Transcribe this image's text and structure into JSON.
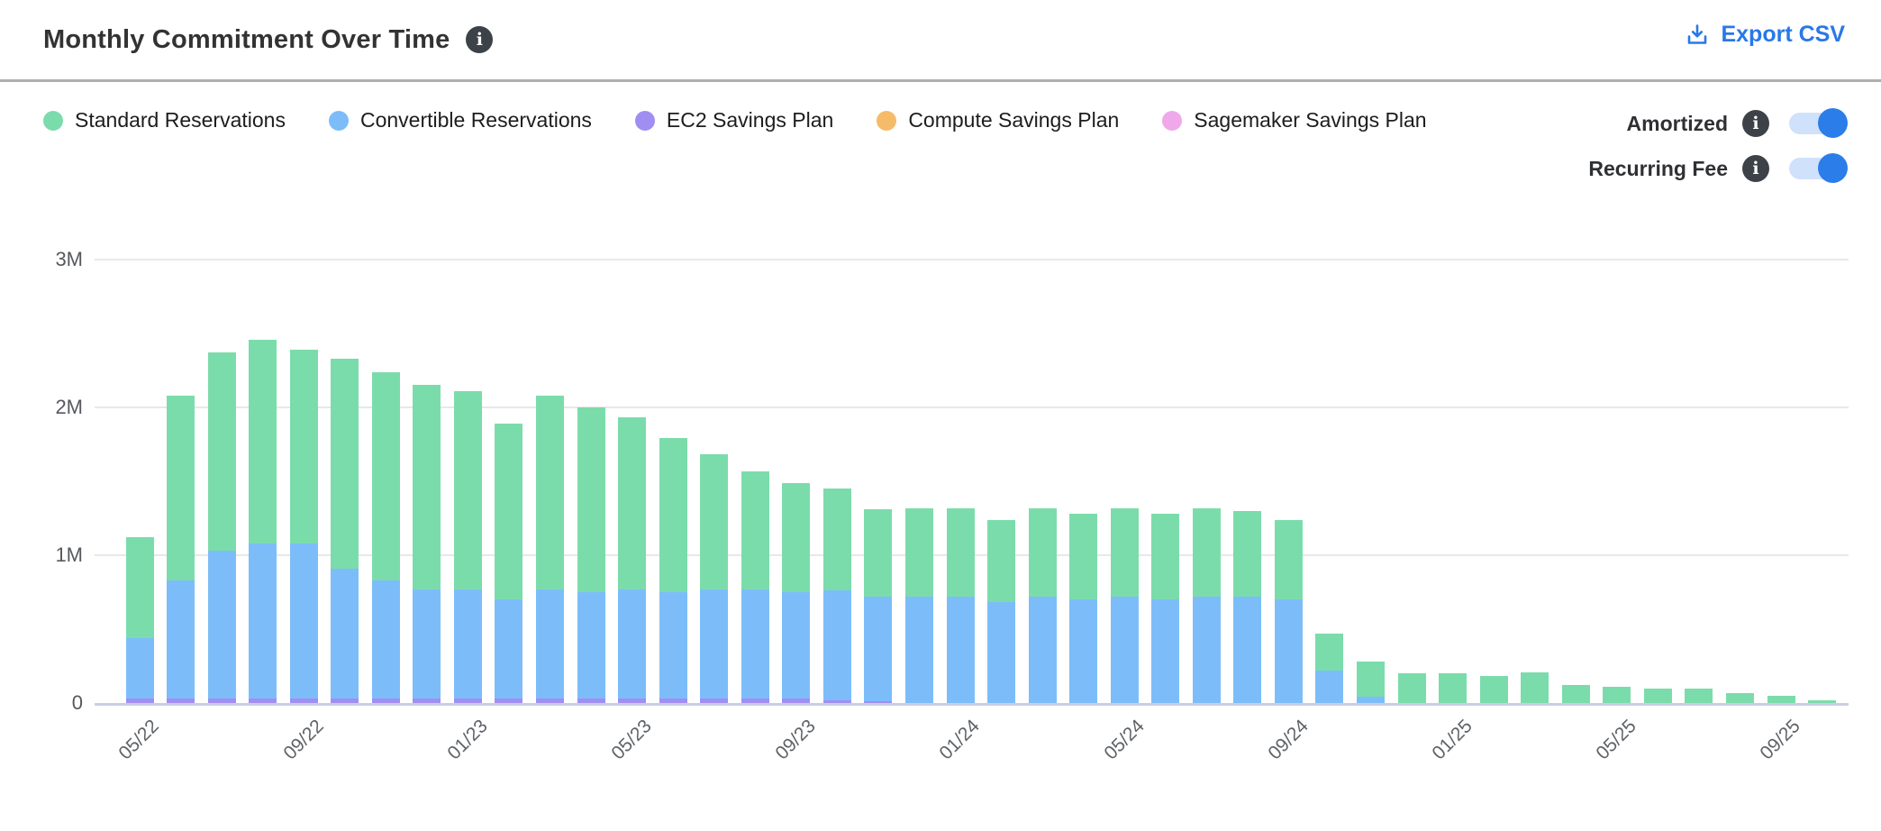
{
  "header": {
    "title": "Monthly Commitment Over Time",
    "export_label": "Export CSV"
  },
  "controls": {
    "toggles": [
      {
        "label": "Amortized",
        "state": "on"
      },
      {
        "label": "Recurring Fee",
        "state": "on"
      }
    ]
  },
  "legend": {
    "items": [
      {
        "label": "Standard Reservations",
        "color": "#7bdcab"
      },
      {
        "label": "Convertible Reservations",
        "color": "#7cbdf9"
      },
      {
        "label": "EC2 Savings Plan",
        "color": "#a18ef2"
      },
      {
        "label": "Compute Savings Plan",
        "color": "#f5bb68"
      },
      {
        "label": "Sagemaker Savings Plan",
        "color": "#efa9ea"
      }
    ]
  },
  "colors": {
    "accent_blue": "#2878e8",
    "toggle_track": "#cfe1fb",
    "toggle_knob": "#2b7de9",
    "gridline": "#e8e8e8",
    "axis_line": "#c9cfe3"
  },
  "chart_data": {
    "type": "bar",
    "stacked": true,
    "unit": "M",
    "title": "Monthly Commitment Over Time",
    "xlabel": "",
    "ylabel": "",
    "ylim": [
      0,
      3
    ],
    "grid": true,
    "legend_position": "top-left",
    "categories": [
      "05/22",
      "06/22",
      "07/22",
      "08/22",
      "09/22",
      "10/22",
      "11/22",
      "12/22",
      "01/23",
      "02/23",
      "03/23",
      "04/23",
      "05/23",
      "06/23",
      "07/23",
      "08/23",
      "09/23",
      "10/23",
      "11/23",
      "12/23",
      "01/24",
      "02/24",
      "03/24",
      "04/24",
      "05/24",
      "06/24",
      "07/24",
      "08/24",
      "09/24",
      "10/24",
      "11/24",
      "12/24",
      "01/25",
      "02/25",
      "03/25",
      "04/25",
      "05/25",
      "06/25",
      "07/25",
      "08/25",
      "09/25",
      "10/25"
    ],
    "x_tick_labels": [
      "05/22",
      "09/22",
      "01/23",
      "05/23",
      "09/23",
      "01/24",
      "05/24",
      "09/24",
      "01/25",
      "05/25",
      "09/25"
    ],
    "x_tick_every": 4,
    "yticks": [
      {
        "label": "0",
        "value": 0
      },
      {
        "label": "1M",
        "value": 1
      },
      {
        "label": "2M",
        "value": 2
      },
      {
        "label": "3M",
        "value": 3
      }
    ],
    "values_in_millions": true,
    "series": [
      {
        "name": "Standard Reservations",
        "color": "#7bdcab",
        "values": [
          0.68,
          1.25,
          1.34,
          1.38,
          1.31,
          1.42,
          1.41,
          1.38,
          1.34,
          1.19,
          1.31,
          1.25,
          1.16,
          1.04,
          0.91,
          0.8,
          0.74,
          0.69,
          0.59,
          0.6,
          0.6,
          0.56,
          0.6,
          0.58,
          0.6,
          0.58,
          0.6,
          0.58,
          0.54,
          0.25,
          0.24,
          0.2,
          0.2,
          0.18,
          0.21,
          0.12,
          0.11,
          0.1,
          0.1,
          0.07,
          0.05,
          0.02
        ]
      },
      {
        "name": "Convertible Reservations",
        "color": "#7cbdf9",
        "values": [
          0.41,
          0.8,
          1.0,
          1.05,
          1.05,
          0.88,
          0.8,
          0.74,
          0.74,
          0.67,
          0.74,
          0.72,
          0.74,
          0.72,
          0.74,
          0.74,
          0.72,
          0.74,
          0.71,
          0.72,
          0.72,
          0.68,
          0.72,
          0.7,
          0.72,
          0.7,
          0.72,
          0.72,
          0.7,
          0.22,
          0.04,
          0,
          0,
          0,
          0,
          0,
          0,
          0,
          0,
          0,
          0,
          0
        ]
      },
      {
        "name": "EC2 Savings Plan",
        "color": "#a18ef2",
        "values": [
          0.03,
          0.03,
          0.03,
          0.03,
          0.03,
          0.03,
          0.03,
          0.03,
          0.03,
          0.03,
          0.03,
          0.03,
          0.03,
          0.03,
          0.03,
          0.03,
          0.03,
          0.02,
          0.01,
          0,
          0,
          0,
          0,
          0,
          0,
          0,
          0,
          0,
          0,
          0,
          0,
          0,
          0,
          0,
          0,
          0,
          0,
          0,
          0,
          0,
          0,
          0
        ]
      },
      {
        "name": "Compute Savings Plan",
        "color": "#f5bb68",
        "values": [
          0,
          0,
          0,
          0,
          0,
          0,
          0,
          0,
          0,
          0,
          0,
          0,
          0,
          0,
          0,
          0,
          0,
          0,
          0,
          0,
          0,
          0,
          0,
          0,
          0,
          0,
          0,
          0,
          0,
          0,
          0,
          0,
          0,
          0,
          0,
          0,
          0,
          0,
          0,
          0,
          0,
          0
        ]
      },
      {
        "name": "Sagemaker Savings Plan",
        "color": "#efa9ea",
        "values": [
          0,
          0,
          0,
          0,
          0,
          0,
          0,
          0,
          0,
          0,
          0,
          0,
          0,
          0,
          0,
          0,
          0,
          0,
          0,
          0,
          0,
          0,
          0,
          0,
          0,
          0,
          0,
          0,
          0,
          0,
          0,
          0,
          0,
          0,
          0,
          0,
          0,
          0,
          0,
          0,
          0,
          0
        ]
      }
    ],
    "stack_order_bottom_to_top": [
      "EC2 Savings Plan",
      "Convertible Reservations",
      "Standard Reservations",
      "Compute Savings Plan",
      "Sagemaker Savings Plan"
    ]
  }
}
